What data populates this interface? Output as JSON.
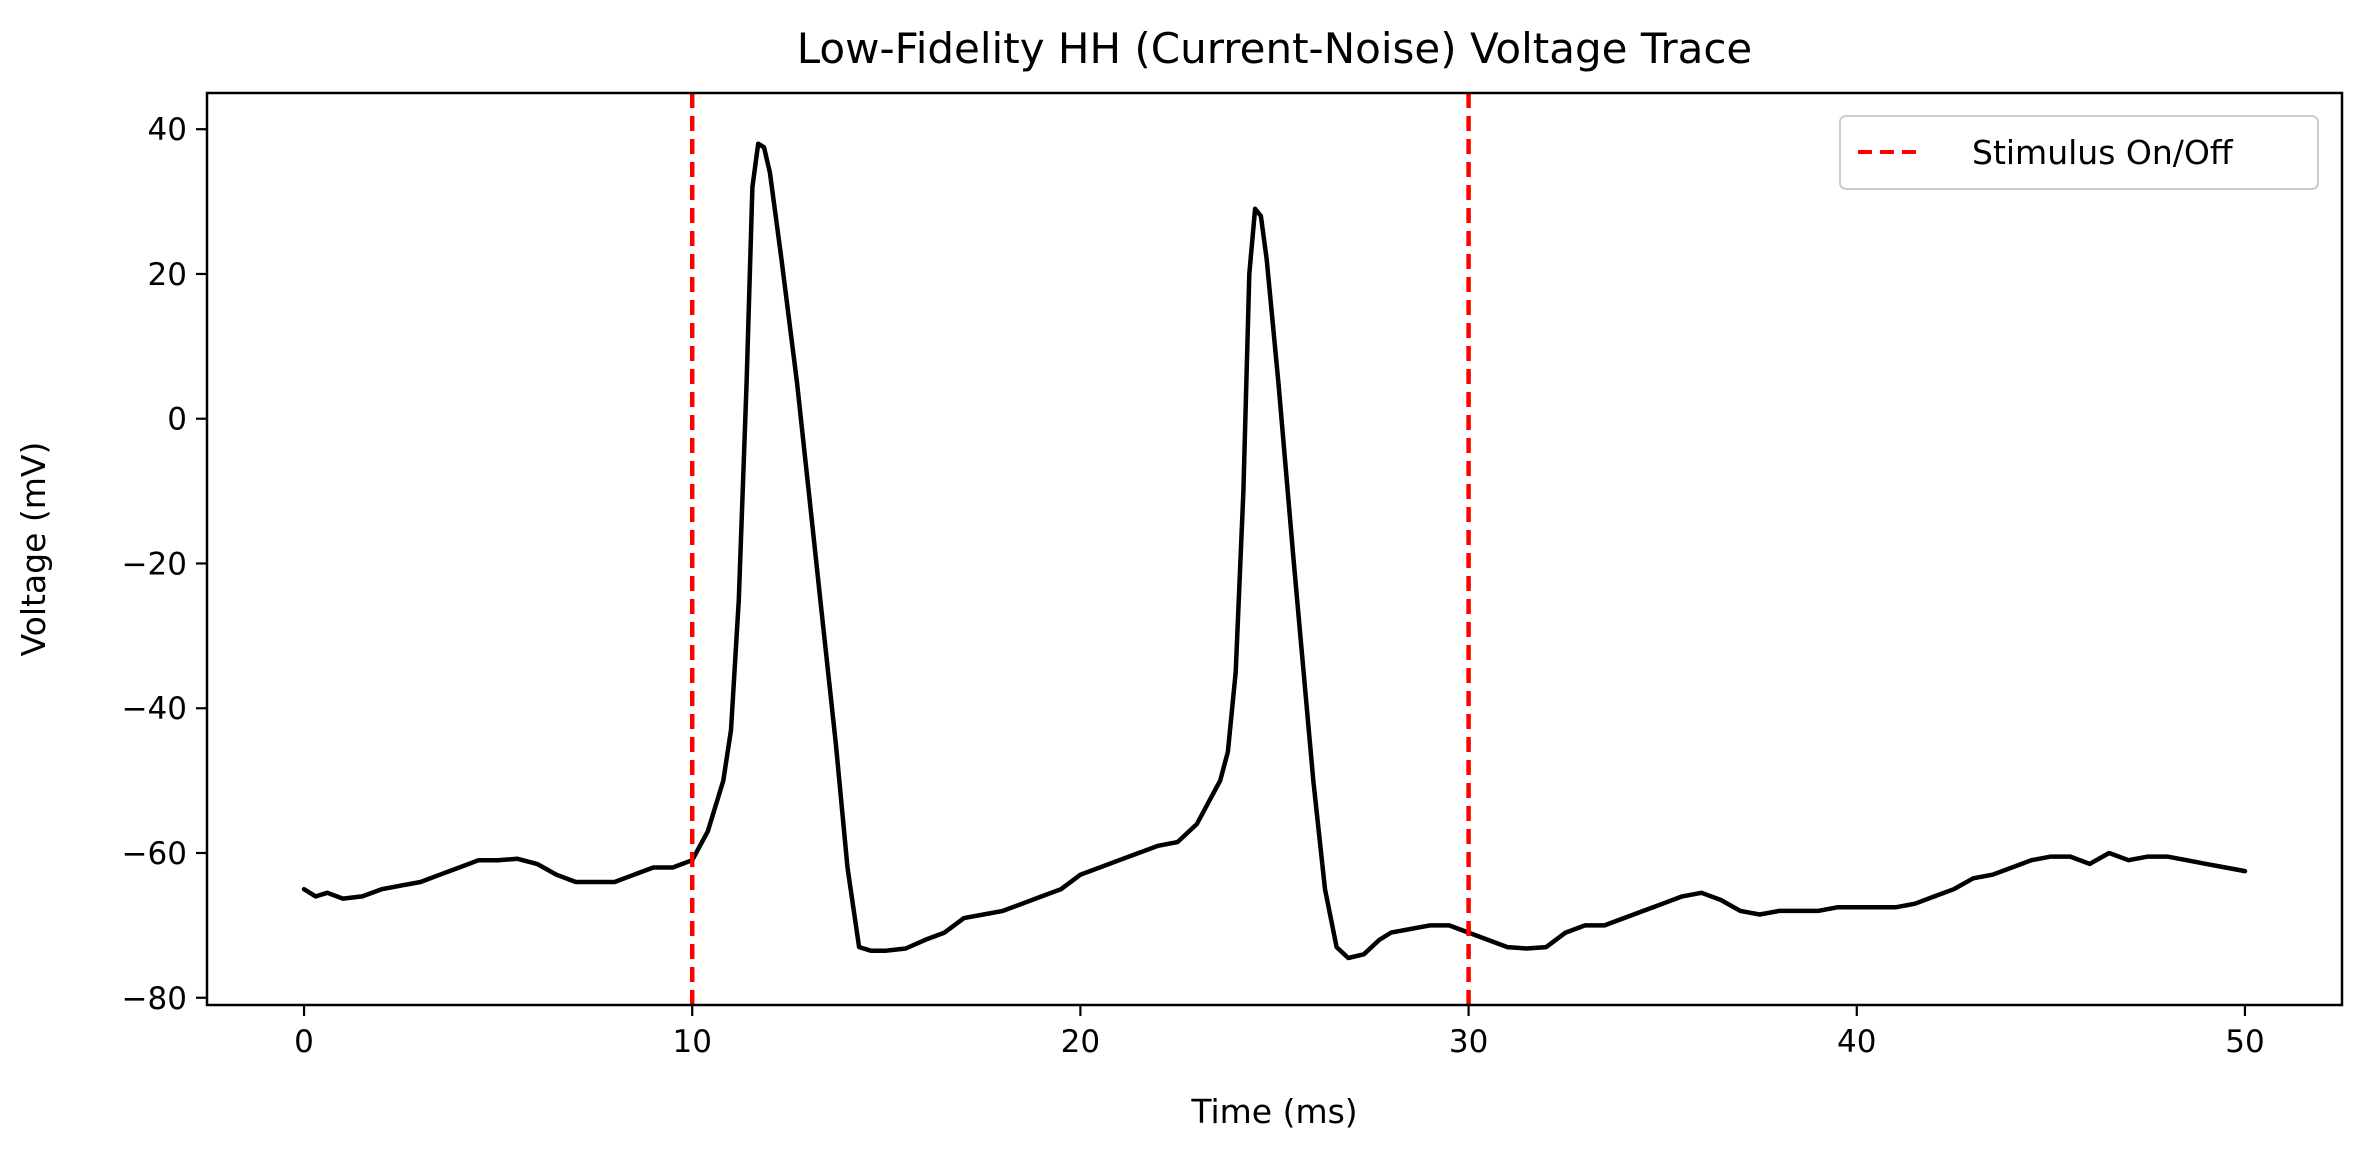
{
  "chart_data": {
    "type": "line",
    "title": "Low-Fidelity HH (Current-Noise) Voltage Trace",
    "xlabel": "Time (ms)",
    "ylabel": "Voltage (mV)",
    "xlim": [
      -2.5,
      52.5
    ],
    "ylim": [
      -81,
      45
    ],
    "xticks": [
      0,
      10,
      20,
      30,
      40,
      50
    ],
    "yticks": [
      -80,
      -60,
      -40,
      -20,
      0,
      20,
      40
    ],
    "xtick_labels": [
      "0",
      "10",
      "20",
      "30",
      "40",
      "50"
    ],
    "ytick_labels": [
      "−80",
      "−60",
      "−40",
      "−20",
      "0",
      "20",
      "40"
    ],
    "grid": false,
    "legend": {
      "position": "top-right",
      "entries": [
        "Stimulus On/Off"
      ]
    },
    "series": [
      {
        "kind": "line",
        "color": "#000000",
        "x": [
          0,
          0.3,
          0.6,
          1,
          1.5,
          2,
          2.5,
          3,
          3.5,
          4,
          4.5,
          5,
          5.5,
          6,
          6.5,
          7,
          7.5,
          8,
          8.5,
          9,
          9.5,
          10,
          10.4,
          10.8,
          11,
          11.2,
          11.4,
          11.55,
          11.7,
          11.85,
          12,
          12.3,
          12.7,
          13,
          13.3,
          13.7,
          14,
          14.3,
          14.6,
          15,
          15.5,
          16,
          16.5,
          17,
          17.5,
          18,
          18.5,
          19,
          19.5,
          20,
          20.5,
          21,
          21.5,
          22,
          22.5,
          23,
          23.3,
          23.6,
          23.8,
          24,
          24.2,
          24.35,
          24.5,
          24.65,
          24.8,
          25.1,
          25.5,
          26,
          26.3,
          26.6,
          26.9,
          27.3,
          27.7,
          28,
          28.5,
          29,
          29.5,
          30,
          30.5,
          31,
          31.5,
          32,
          32.5,
          33,
          33.5,
          34,
          34.5,
          35,
          35.5,
          36,
          36.5,
          37,
          37.5,
          38,
          38.5,
          39,
          39.5,
          40,
          40.5,
          41,
          41.5,
          42,
          42.5,
          43,
          43.5,
          44,
          44.5,
          45,
          45.5,
          46,
          46.5,
          47,
          47.5,
          48,
          48.5,
          49,
          49.5,
          50
        ],
        "y": [
          -65,
          -66,
          -65.5,
          -66.3,
          -66,
          -65,
          -64.5,
          -64,
          -63,
          -62,
          -61,
          -61,
          -60.8,
          -61.5,
          -63,
          -64,
          -64,
          -64,
          -63,
          -62,
          -62,
          -61,
          -57,
          -50,
          -43,
          -25,
          5,
          32,
          38,
          37.5,
          34,
          22,
          5,
          -10,
          -25,
          -45,
          -62,
          -73,
          -73.5,
          -73.5,
          -73.2,
          -72,
          -71,
          -69,
          -68.5,
          -68,
          -67,
          -66,
          -65,
          -63,
          -62,
          -61,
          -60,
          -59,
          -58.5,
          -56,
          -53,
          -50,
          -46,
          -35,
          -10,
          20,
          29,
          28,
          22,
          5,
          -20,
          -50,
          -65,
          -73,
          -74.5,
          -74,
          -72,
          -71,
          -70.5,
          -70,
          -70,
          -71,
          -72,
          -73,
          -73.2,
          -73,
          -71,
          -70,
          -70,
          -69,
          -68,
          -67,
          -66,
          -65.5,
          -66.5,
          -68,
          -68.5,
          -68,
          -68,
          -68,
          -67.5,
          -67.5,
          -67.5,
          -67.5,
          -67,
          -66,
          -65,
          -63.5,
          -63,
          -62,
          -61,
          -60.5,
          -60.5,
          -61.5,
          -60,
          -61,
          -60.5,
          -60.5,
          -61,
          -61.5,
          -62,
          -62.5
        ]
      },
      {
        "kind": "vline",
        "name": "Stimulus On/Off",
        "color": "#ff0000",
        "style": "dashed",
        "x": [
          10,
          30
        ]
      }
    ]
  }
}
